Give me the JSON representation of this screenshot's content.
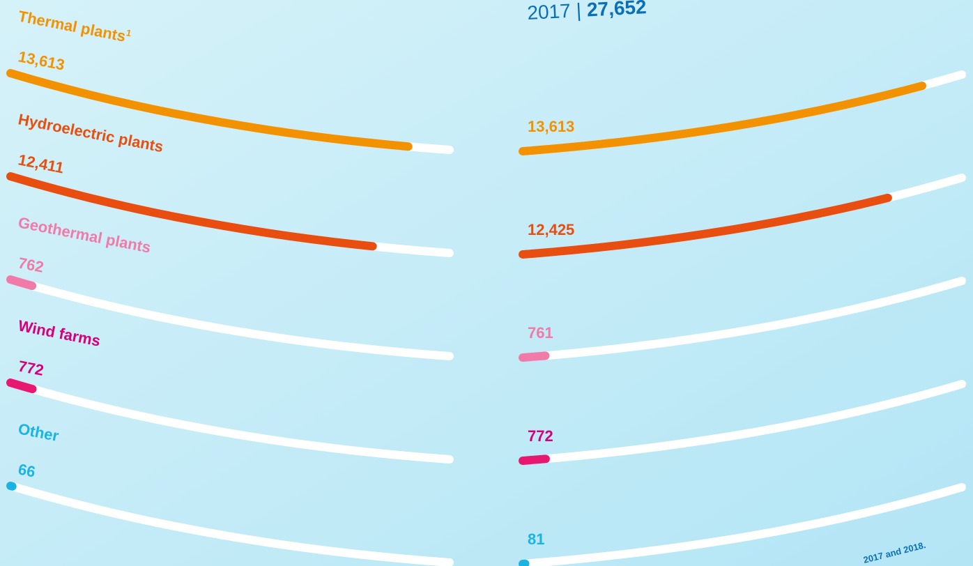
{
  "chart_data": [
    {
      "type": "arc-bar",
      "categories": [
        "Thermal plants",
        "Hydroelectric plants",
        "Geothermal plants",
        "Wind farms",
        "Other"
      ],
      "category_footnote": {
        "index": 0,
        "marker": "1"
      },
      "values": [
        13613,
        12411,
        762,
        772,
        66
      ],
      "value_labels": [
        "13,613",
        "12,411",
        "762",
        "772",
        "66"
      ],
      "colors": [
        "#f39200",
        "#e84e0f",
        "#f07aa8",
        "#e6186f",
        "#1ab4e4"
      ],
      "label_colors": [
        "#f39200",
        "#e84e0f",
        "#f07aa8",
        "#d6007b",
        "#1ab4e4"
      ],
      "xlim": [
        0,
        15000
      ]
    },
    {
      "type": "arc-bar",
      "title": "2017",
      "separator": "|",
      "total": 27652,
      "total_label": "27,652",
      "categories": [
        "Thermal plants",
        "Hydroelectric plants",
        "Geothermal plants",
        "Wind farms",
        "Other"
      ],
      "values": [
        13613,
        12425,
        761,
        772,
        81
      ],
      "value_labels": [
        "13,613",
        "12,425",
        "761",
        "772",
        "81"
      ],
      "colors": [
        "#f39200",
        "#e84e0f",
        "#f07aa8",
        "#e6186f",
        "#1ab4e4"
      ],
      "label_colors": [
        "#f39200",
        "#e84e0f",
        "#f07aa8",
        "#d6007b",
        "#1ab4e4"
      ],
      "xlim": [
        0,
        15000
      ],
      "footnote": "2017 and 2018."
    }
  ]
}
